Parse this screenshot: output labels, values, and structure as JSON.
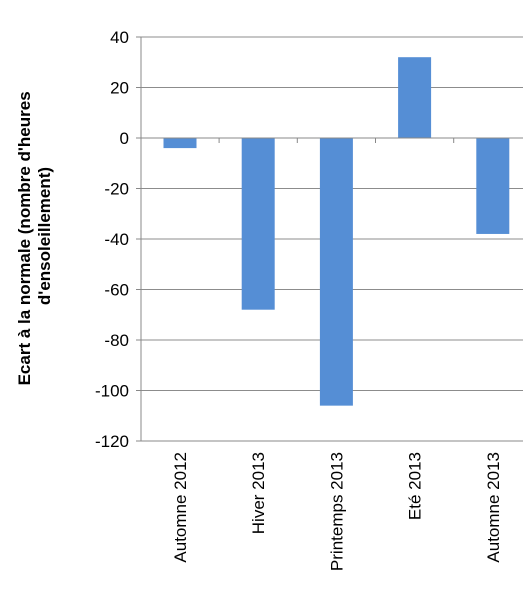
{
  "chart_data": {
    "type": "bar",
    "title": "",
    "xlabel": "",
    "ylabel_lines": [
      "Ecart à la normale (nombre d'heures",
      "d'ensoleillement)"
    ],
    "categories": [
      "Automne 2012",
      "Hiver 2013",
      "Printemps 2013",
      "Eté 2013",
      "Automne 2013"
    ],
    "values": [
      -4,
      -68,
      -106,
      32,
      -38
    ],
    "ylim": [
      -120,
      40
    ],
    "yticks": [
      40,
      20,
      0,
      -20,
      -40,
      -60,
      -80,
      -100,
      -120
    ],
    "grid": true,
    "legend": "none",
    "bar_color": "#558ED5"
  }
}
